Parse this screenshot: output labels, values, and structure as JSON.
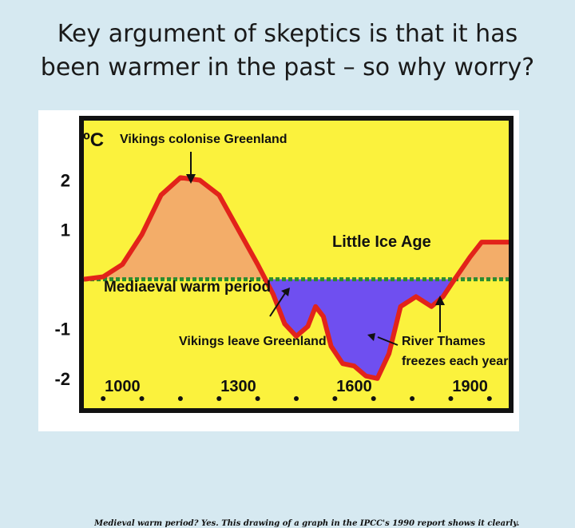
{
  "slide": {
    "title_line1": "Key argument of skeptics is that it has",
    "title_line2": "been warmer in the past – so why worry?"
  },
  "figure": {
    "caption": "Medieval warm period? Yes. This drawing of a graph in the IPCC's 1990 report shows it clearly."
  },
  "chart_data": {
    "type": "area",
    "ylabel": "ºC",
    "x_ticks": [
      1000,
      1300,
      1600,
      1900
    ],
    "y_ticks": [
      2,
      1,
      -1,
      -2
    ],
    "xlim": [
      900,
      2000
    ],
    "ylim": [
      -2.6,
      3.2
    ],
    "baseline": 0,
    "grid": false,
    "series": [
      {
        "points": [
          [
            900,
            0.0
          ],
          [
            950,
            0.05
          ],
          [
            1000,
            0.3
          ],
          [
            1050,
            0.9
          ],
          [
            1100,
            1.7
          ],
          [
            1150,
            2.05
          ],
          [
            1200,
            2.0
          ],
          [
            1250,
            1.7
          ],
          [
            1300,
            1.0
          ],
          [
            1350,
            0.3
          ],
          [
            1390,
            -0.3
          ],
          [
            1420,
            -0.9
          ],
          [
            1450,
            -1.15
          ],
          [
            1480,
            -0.95
          ],
          [
            1500,
            -0.55
          ],
          [
            1520,
            -0.75
          ],
          [
            1540,
            -1.35
          ],
          [
            1570,
            -1.7
          ],
          [
            1600,
            -1.75
          ],
          [
            1630,
            -1.95
          ],
          [
            1660,
            -2.0
          ],
          [
            1690,
            -1.5
          ],
          [
            1720,
            -0.55
          ],
          [
            1760,
            -0.35
          ],
          [
            1800,
            -0.55
          ],
          [
            1830,
            -0.35
          ],
          [
            1860,
            0.0
          ],
          [
            1900,
            0.45
          ],
          [
            1930,
            0.75
          ],
          [
            1970,
            0.75
          ],
          [
            2000,
            0.75
          ]
        ]
      }
    ],
    "annotations": {
      "vikings_colonise": "Vikings colonise Greenland",
      "little_ice_age": "Little Ice Age",
      "mediaeval_warm": "Mediaeval warm period",
      "vikings_leave": "Vikings leave Greenland",
      "thames_line1": "River Thames",
      "thames_line2": "freezes each year"
    },
    "colors": {
      "background": "#fbf23d",
      "frame": "#111111",
      "warm_fill": "#f3ad69",
      "cold_fill": "#6f4ff0",
      "curve": "#e2231a",
      "baseline": "#2b8b2f"
    }
  }
}
